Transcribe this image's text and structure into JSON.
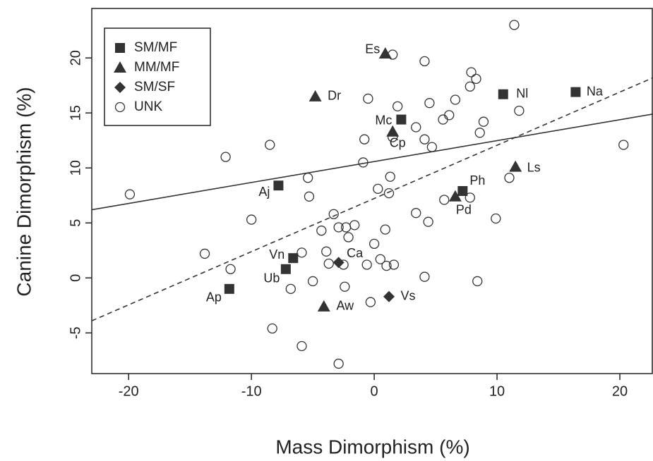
{
  "chart_data": {
    "type": "scatter",
    "x_label": "Mass Dimorphism (%)",
    "y_label": "Canine Dimorphism (%)",
    "xlim": [
      -23,
      22.7
    ],
    "ylim": [
      -8.7,
      24.5
    ],
    "xticks": [
      -20,
      -10,
      0,
      10,
      20
    ],
    "yticks": [
      -5,
      0,
      5,
      10,
      15,
      20
    ],
    "legend": "top-left",
    "series": [
      {
        "name": "SM/MF",
        "marker": "square",
        "color": "#333333",
        "x": [
          -11.8,
          -7.2,
          -6.6,
          -7.8,
          2.2,
          10.5,
          16.4,
          7.2
        ],
        "y": [
          -1.0,
          0.8,
          1.8,
          8.4,
          14.4,
          16.7,
          16.9,
          7.9
        ],
        "labels": [
          "Ap",
          "Ub",
          "Vn",
          "Aj",
          "Mc",
          "Nl",
          "Na",
          "Ph"
        ]
      },
      {
        "name": "MM/MF",
        "marker": "triangle",
        "color": "#333333",
        "x": [
          0.9,
          -4.8,
          1.5,
          11.5,
          6.6,
          -4.1
        ],
        "y": [
          20.4,
          16.5,
          13.3,
          10.1,
          7.4,
          -2.6
        ],
        "labels": [
          "Es",
          "Dr",
          "Cp",
          "Ls",
          "Pd",
          "Aw"
        ]
      },
      {
        "name": "SM/SF",
        "marker": "diamond",
        "color": "#333333",
        "x": [
          -2.9,
          1.2
        ],
        "y": [
          1.4,
          -1.7
        ],
        "labels": [
          "Ca",
          "Vs"
        ]
      },
      {
        "name": "UNK",
        "marker": "circle",
        "color": "#333333",
        "x": [
          11.4,
          1.5,
          4.1,
          7.9,
          8.3,
          7.8,
          -0.5,
          6.6,
          1.9,
          4.5,
          6.1,
          5.6,
          11.8,
          8.9,
          8.6,
          3.4,
          1.5,
          4.1,
          4.7,
          -0.8,
          -8.5,
          20.3,
          -12.1,
          -0.9,
          -5.4,
          1.3,
          -19.9,
          -5.3,
          0.3,
          1.2,
          5.7,
          7.8,
          11.0,
          9.9,
          -10.0,
          -3.3,
          -4.3,
          -2.9,
          -2.3,
          -1.6,
          -2.1,
          0.9,
          3.4,
          4.4,
          0,
          -13.8,
          -5.9,
          -3.9,
          -3.7,
          -2.5,
          -0.6,
          0.5,
          1.0,
          1.6,
          -11.7,
          4.1,
          -5.0,
          -6.8,
          -2.4,
          8.4,
          -0.3,
          -8.3,
          -5.9,
          -2.9
        ],
        "y": [
          23.0,
          20.3,
          19.7,
          18.7,
          18.1,
          17.4,
          16.3,
          16.2,
          15.6,
          15.9,
          14.8,
          14.4,
          15.2,
          14.2,
          13.2,
          13.7,
          12.8,
          12.6,
          11.9,
          12.6,
          12.1,
          12.1,
          11.0,
          10.5,
          9.1,
          9.2,
          7.6,
          7.4,
          8.1,
          7.7,
          7.1,
          7.3,
          9.1,
          5.4,
          5.3,
          5.8,
          4.3,
          4.6,
          4.6,
          4.8,
          3.7,
          4.4,
          5.9,
          5.1,
          3.1,
          2.2,
          2.3,
          2.4,
          1.3,
          1.2,
          1.2,
          1.7,
          1.1,
          1.2,
          0.8,
          0.1,
          -0.3,
          -1.0,
          -0.8,
          -0.3,
          -2.2,
          -4.6,
          -6.2,
          -7.8
        ]
      }
    ],
    "fit_lines": [
      {
        "dash": false,
        "x": [
          -23,
          22.7
        ],
        "y": [
          6.2,
          14.9
        ]
      },
      {
        "dash": true,
        "x": [
          -23,
          22.7
        ],
        "y": [
          -3.9,
          18.2
        ]
      }
    ]
  }
}
